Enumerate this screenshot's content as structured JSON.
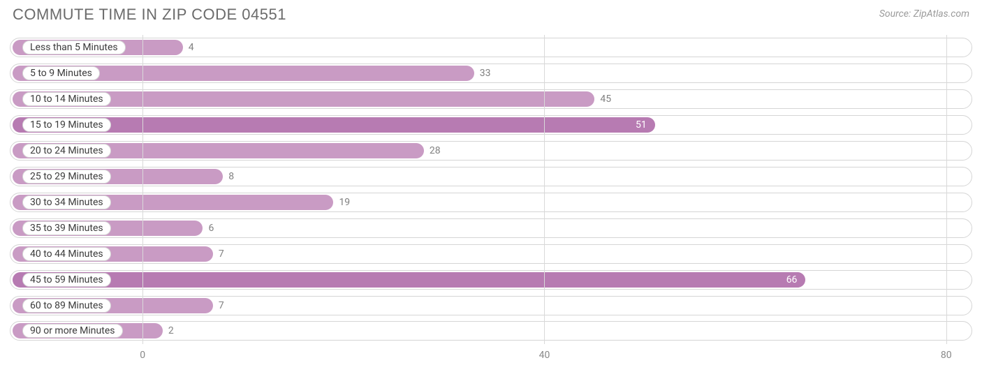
{
  "title": "COMMUTE TIME IN ZIP CODE 04551",
  "source": "Source: ZipAtlas.com",
  "chart": {
    "type": "bar",
    "orientation": "horizontal",
    "axis_origin_pct": 13.8,
    "axis_span_pct": 83.5,
    "x_domain": [
      0,
      80
    ],
    "x_ticks": [
      0,
      40,
      80
    ],
    "bar_color": "#c99bc4",
    "bar_color_highlight": "#b77bb2",
    "highlight_threshold": 50,
    "track_border_color": "#d5d5d5",
    "gridline_color": "#d9d9d9",
    "label_text_color": "#3a3a3a",
    "value_text_color_outside": "#808080",
    "value_text_color_inside": "#ffffff",
    "value_fontsize": 14,
    "label_fontsize": 14,
    "bars": [
      {
        "label": "Less than 5 Minutes",
        "value": 4
      },
      {
        "label": "5 to 9 Minutes",
        "value": 33
      },
      {
        "label": "10 to 14 Minutes",
        "value": 45
      },
      {
        "label": "15 to 19 Minutes",
        "value": 51
      },
      {
        "label": "20 to 24 Minutes",
        "value": 28
      },
      {
        "label": "25 to 29 Minutes",
        "value": 8
      },
      {
        "label": "30 to 34 Minutes",
        "value": 19
      },
      {
        "label": "35 to 39 Minutes",
        "value": 6
      },
      {
        "label": "40 to 44 Minutes",
        "value": 7
      },
      {
        "label": "45 to 59 Minutes",
        "value": 66
      },
      {
        "label": "60 to 89 Minutes",
        "value": 7
      },
      {
        "label": "90 or more Minutes",
        "value": 2
      }
    ]
  }
}
